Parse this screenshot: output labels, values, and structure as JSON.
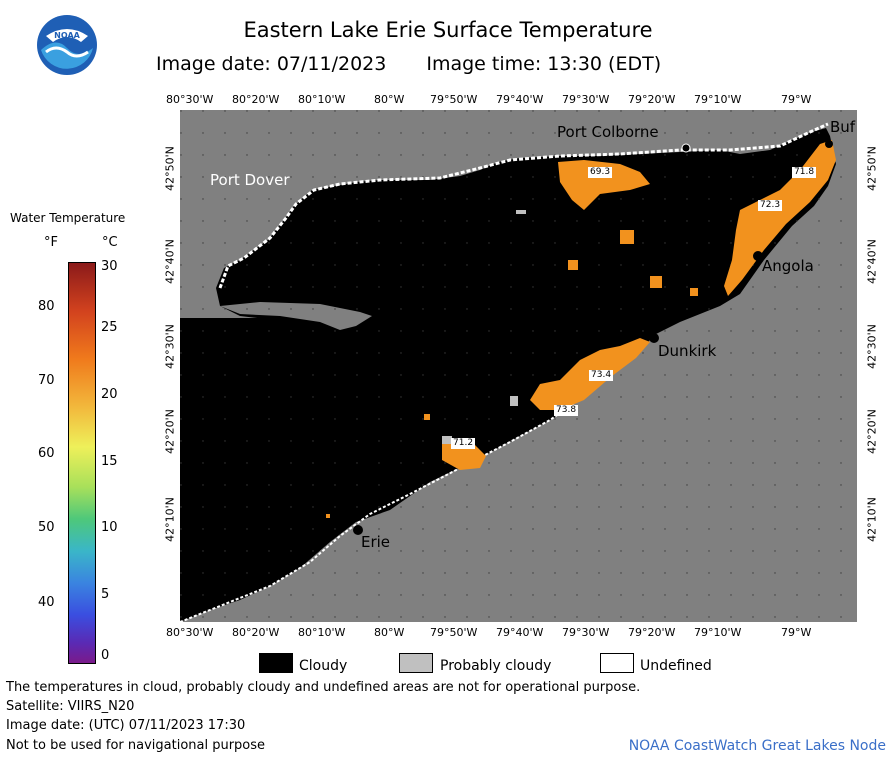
{
  "title": "Eastern Lake Erie Surface Temperature",
  "image_date_label": "Image date: 07/11/2023",
  "image_time_label": "Image time: 13:30 (EDT)",
  "logo_text": "NOAA",
  "longitude_ticks": [
    "80°30'W",
    "80°20'W",
    "80°10'W",
    "80°W",
    "79°50'W",
    "79°40'W",
    "79°30'W",
    "79°20'W",
    "79°10'W",
    "79°W"
  ],
  "latitude_ticks": [
    "42°50'N",
    "42°40'N",
    "42°30'N",
    "42°20'N",
    "42°10'N"
  ],
  "places": {
    "port_colborne": "Port Colborne",
    "port_dover": "Port Dover",
    "buffalo": "Buf",
    "angola": "Angola",
    "dunkirk": "Dunkirk",
    "erie": "Erie"
  },
  "temperature_labels": [
    "69.3",
    "71.8",
    "72.3",
    "73.4",
    "73.8",
    "71.2"
  ],
  "legend": {
    "title": "Water Temperature",
    "f_unit": "°F",
    "c_unit": "°C",
    "f_ticks": [
      "80",
      "70",
      "60",
      "50",
      "40"
    ],
    "c_ticks": [
      "30",
      "25",
      "20",
      "15",
      "10",
      "5",
      "0"
    ]
  },
  "cloud_legend": {
    "cloudy": "Cloudy",
    "probably_cloudy": "Probably cloudy",
    "undefined": "Undefined"
  },
  "footer": {
    "line1": "The temperatures in cloud, probably cloudy and undefined areas are not for operational purpose.",
    "line2": "Satellite: VIIRS_N20",
    "line3": "Image date: (UTC) 07/11/2023  17:30",
    "line4": "Not to be used for navigational purpose",
    "credit": "NOAA CoastWatch Great Lakes Node"
  },
  "colors": {
    "cloud": "#000000",
    "land": "#808080",
    "probably_cloudy": "#c0c0c0",
    "undefined": "#ffffff",
    "warm_water": "#f2921e",
    "credit": "#3a6fc8"
  }
}
